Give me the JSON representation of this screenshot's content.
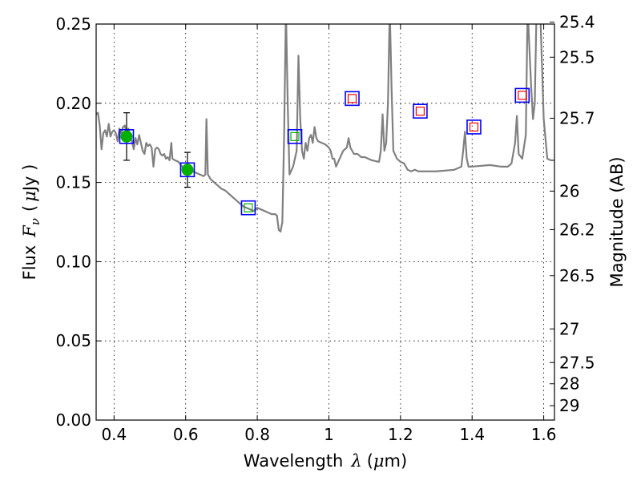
{
  "chart_data": {
    "type": "scatter",
    "title": "",
    "xlabel": {
      "prefix": "Wavelength",
      "symbol": "λ",
      "unit_open": "(",
      "unit_mu": "μ",
      "unit_rest": "m)"
    },
    "ylabel": {
      "prefix": "Flux",
      "symbol": "F",
      "subscript": "ν",
      "unit_open": "(",
      "unit_mu": "μ",
      "unit_rest": "Jy )"
    },
    "y2label": "Magnitude (AB)",
    "xlim": [
      0.35,
      1.63
    ],
    "ylim": [
      0.0,
      0.25
    ],
    "grid": true,
    "x_ticks": [
      {
        "value": 0.4,
        "label": "0.4"
      },
      {
        "value": 0.6,
        "label": "0.6"
      },
      {
        "value": 0.8,
        "label": "0.8"
      },
      {
        "value": 1.0,
        "label": "1"
      },
      {
        "value": 1.2,
        "label": "1.2"
      },
      {
        "value": 1.4,
        "label": "1.4"
      },
      {
        "value": 1.6,
        "label": "1.6"
      }
    ],
    "y_ticks": [
      {
        "value": 0.0,
        "label": "0.00"
      },
      {
        "value": 0.05,
        "label": "0.05"
      },
      {
        "value": 0.1,
        "label": "0.10"
      },
      {
        "value": 0.15,
        "label": "0.15"
      },
      {
        "value": 0.2,
        "label": "0.20"
      },
      {
        "value": 0.25,
        "label": "0.25"
      }
    ],
    "y2_ticks": [
      {
        "value": 25.4,
        "label": "25.4"
      },
      {
        "value": 25.5,
        "label": "25.5"
      },
      {
        "value": 25.7,
        "label": "25.7"
      },
      {
        "value": 26,
        "label": "26"
      },
      {
        "value": 26.2,
        "label": "26.2"
      },
      {
        "value": 26.5,
        "label": "26.5"
      },
      {
        "value": 27,
        "label": "27"
      },
      {
        "value": 27.5,
        "label": "27.5"
      },
      {
        "value": 28,
        "label": "28"
      },
      {
        "value": 29,
        "label": "29"
      }
    ],
    "series": [
      {
        "kind": "template_spectrum",
        "color": "#808080",
        "points": [
          [
            0.35,
            0.193
          ],
          [
            0.355,
            0.194
          ],
          [
            0.36,
            0.186
          ],
          [
            0.365,
            0.171
          ],
          [
            0.37,
            0.181
          ],
          [
            0.375,
            0.183
          ],
          [
            0.38,
            0.179
          ],
          [
            0.385,
            0.187
          ],
          [
            0.39,
            0.179
          ],
          [
            0.395,
            0.182
          ],
          [
            0.4,
            0.183
          ],
          [
            0.405,
            0.181
          ],
          [
            0.41,
            0.176
          ],
          [
            0.415,
            0.184
          ],
          [
            0.42,
            0.181
          ],
          [
            0.425,
            0.185
          ],
          [
            0.43,
            0.186
          ],
          [
            0.435,
            0.18
          ],
          [
            0.44,
            0.184
          ],
          [
            0.445,
            0.179
          ],
          [
            0.45,
            0.176
          ],
          [
            0.455,
            0.171
          ],
          [
            0.46,
            0.178
          ],
          [
            0.465,
            0.174
          ],
          [
            0.47,
            0.18
          ],
          [
            0.475,
            0.175
          ],
          [
            0.48,
            0.17
          ],
          [
            0.485,
            0.168
          ],
          [
            0.49,
            0.175
          ],
          [
            0.495,
            0.173
          ],
          [
            0.5,
            0.174
          ],
          [
            0.505,
            0.172
          ],
          [
            0.51,
            0.16
          ],
          [
            0.515,
            0.171
          ],
          [
            0.52,
            0.172
          ],
          [
            0.525,
            0.171
          ],
          [
            0.53,
            0.168
          ],
          [
            0.535,
            0.167
          ],
          [
            0.54,
            0.168
          ],
          [
            0.545,
            0.165
          ],
          [
            0.55,
            0.166
          ],
          [
            0.555,
            0.164
          ],
          [
            0.56,
            0.175
          ],
          [
            0.563,
            0.165
          ],
          [
            0.57,
            0.164
          ],
          [
            0.58,
            0.163
          ],
          [
            0.59,
            0.16
          ],
          [
            0.6,
            0.158
          ],
          [
            0.61,
            0.158
          ],
          [
            0.62,
            0.157
          ],
          [
            0.63,
            0.156
          ],
          [
            0.64,
            0.155
          ],
          [
            0.65,
            0.154
          ],
          [
            0.655,
            0.155
          ],
          [
            0.658,
            0.19
          ],
          [
            0.662,
            0.155
          ],
          [
            0.67,
            0.152
          ],
          [
            0.68,
            0.15
          ],
          [
            0.69,
            0.148
          ],
          [
            0.7,
            0.146
          ],
          [
            0.71,
            0.145
          ],
          [
            0.72,
            0.143
          ],
          [
            0.73,
            0.141
          ],
          [
            0.74,
            0.139
          ],
          [
            0.75,
            0.137
          ],
          [
            0.76,
            0.135
          ],
          [
            0.77,
            0.134
          ],
          [
            0.78,
            0.133
          ],
          [
            0.79,
            0.132
          ],
          [
            0.8,
            0.134
          ],
          [
            0.81,
            0.133
          ],
          [
            0.82,
            0.132
          ],
          [
            0.83,
            0.131
          ],
          [
            0.84,
            0.13
          ],
          [
            0.85,
            0.13
          ],
          [
            0.855,
            0.129
          ],
          [
            0.86,
            0.12
          ],
          [
            0.865,
            0.119
          ],
          [
            0.87,
            0.125
          ],
          [
            0.875,
            0.18
          ],
          [
            0.88,
            0.26
          ],
          [
            0.885,
            0.2
          ],
          [
            0.89,
            0.155
          ],
          [
            0.9,
            0.16
          ],
          [
            0.905,
            0.165
          ],
          [
            0.91,
            0.17
          ],
          [
            0.915,
            0.23
          ],
          [
            0.92,
            0.19
          ],
          [
            0.925,
            0.17
          ],
          [
            0.93,
            0.165
          ],
          [
            0.935,
            0.175
          ],
          [
            0.94,
            0.17
          ],
          [
            0.945,
            0.178
          ],
          [
            0.95,
            0.18
          ],
          [
            0.955,
            0.175
          ],
          [
            0.96,
            0.185
          ],
          [
            0.965,
            0.178
          ],
          [
            0.97,
            0.176
          ],
          [
            0.98,
            0.175
          ],
          [
            0.99,
            0.174
          ],
          [
            1.0,
            0.172
          ],
          [
            1.005,
            0.17
          ],
          [
            1.01,
            0.165
          ],
          [
            1.015,
            0.165
          ],
          [
            1.02,
            0.16
          ],
          [
            1.03,
            0.165
          ],
          [
            1.04,
            0.17
          ],
          [
            1.05,
            0.172
          ],
          [
            1.055,
            0.178
          ],
          [
            1.06,
            0.172
          ],
          [
            1.07,
            0.168
          ],
          [
            1.08,
            0.168
          ],
          [
            1.09,
            0.166
          ],
          [
            1.1,
            0.166
          ],
          [
            1.12,
            0.164
          ],
          [
            1.14,
            0.163
          ],
          [
            1.145,
            0.17
          ],
          [
            1.15,
            0.193
          ],
          [
            1.155,
            0.17
          ],
          [
            1.16,
            0.175
          ],
          [
            1.165,
            0.2
          ],
          [
            1.17,
            0.26
          ],
          [
            1.175,
            0.21
          ],
          [
            1.18,
            0.17
          ],
          [
            1.19,
            0.165
          ],
          [
            1.2,
            0.163
          ],
          [
            1.21,
            0.162
          ],
          [
            1.22,
            0.158
          ],
          [
            1.23,
            0.157
          ],
          [
            1.24,
            0.158
          ],
          [
            1.25,
            0.157
          ],
          [
            1.3,
            0.157
          ],
          [
            1.35,
            0.158
          ],
          [
            1.36,
            0.159
          ],
          [
            1.37,
            0.16
          ],
          [
            1.375,
            0.17
          ],
          [
            1.38,
            0.182
          ],
          [
            1.385,
            0.165
          ],
          [
            1.39,
            0.16
          ],
          [
            1.4,
            0.16
          ],
          [
            1.45,
            0.161
          ],
          [
            1.48,
            0.16
          ],
          [
            1.5,
            0.16
          ],
          [
            1.51,
            0.162
          ],
          [
            1.52,
            0.175
          ],
          [
            1.525,
            0.192
          ],
          [
            1.53,
            0.168
          ],
          [
            1.54,
            0.165
          ],
          [
            1.55,
            0.18
          ],
          [
            1.555,
            0.26
          ],
          [
            1.565,
            0.21
          ],
          [
            1.57,
            0.19
          ],
          [
            1.575,
            0.2
          ],
          [
            1.58,
            0.26
          ],
          [
            1.59,
            0.26
          ],
          [
            1.6,
            0.19
          ],
          [
            1.61,
            0.165
          ],
          [
            1.62,
            0.164
          ],
          [
            1.63,
            0.164
          ]
        ]
      },
      {
        "kind": "observed",
        "color": "#00b000",
        "points": [
          {
            "x": 0.435,
            "y": 0.179,
            "yerr": 0.015
          },
          {
            "x": 0.605,
            "y": 0.158,
            "yerr": 0.011
          }
        ]
      },
      {
        "kind": "model_photometry",
        "color": "#0000ff",
        "points": [
          {
            "x": 0.435,
            "y": 0.179
          },
          {
            "x": 0.605,
            "y": 0.158
          },
          {
            "x": 0.775,
            "y": 0.134
          },
          {
            "x": 0.905,
            "y": 0.179
          },
          {
            "x": 1.065,
            "y": 0.203
          },
          {
            "x": 1.255,
            "y": 0.195
          },
          {
            "x": 1.405,
            "y": 0.185
          },
          {
            "x": 1.54,
            "y": 0.205
          }
        ]
      },
      {
        "kind": "inner_markers",
        "points": [
          {
            "x": 0.775,
            "y": 0.134,
            "color": "#00b000"
          },
          {
            "x": 0.905,
            "y": 0.179,
            "color": "#00b000"
          },
          {
            "x": 1.065,
            "y": 0.203,
            "color": "#ff0000"
          },
          {
            "x": 1.255,
            "y": 0.195,
            "color": "#ff0000"
          },
          {
            "x": 1.405,
            "y": 0.185,
            "color": "#ff0000"
          },
          {
            "x": 1.54,
            "y": 0.205,
            "color": "#ff0000"
          }
        ]
      }
    ]
  }
}
